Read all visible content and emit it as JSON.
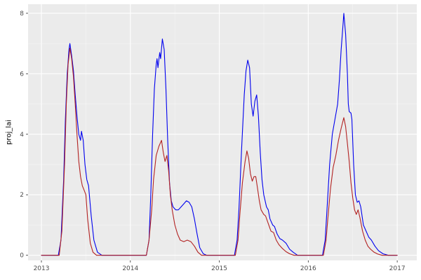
{
  "figure": {
    "background": "#FFFFFF"
  },
  "chart_data": {
    "type": "line",
    "title": "",
    "xlabel": "",
    "ylabel": "proj_lai",
    "xlim": [
      2012.85,
      2017.22
    ],
    "ylim": [
      -0.17,
      8.3
    ],
    "x_ticks": [
      2013,
      2014,
      2015,
      2016,
      2017
    ],
    "x_minor_ticks": [
      2013.5,
      2014.5,
      2015.5,
      2016.5
    ],
    "y_ticks": [
      0,
      2,
      4,
      6,
      8
    ],
    "y_minor_ticks": [
      1,
      3,
      5,
      7
    ],
    "grid": true,
    "legend": "none",
    "panel_background": "#EBEBEB",
    "grid_major_color": "#FFFFFF",
    "grid_minor_color": "#FFFFFF",
    "grid_minor_opacity": 0.55,
    "tick_color": "#333333",
    "tick_label_color": "#4D4D4D",
    "axis_title_color": "#000000",
    "series": [
      {
        "name": "blue-line",
        "color": "#0000EE",
        "points": [
          [
            2013.0,
            0
          ],
          [
            2013.19,
            0
          ],
          [
            2013.22,
            0.5
          ],
          [
            2013.25,
            2.5
          ],
          [
            2013.27,
            4.5
          ],
          [
            2013.29,
            6.0
          ],
          [
            2013.31,
            6.8
          ],
          [
            2013.32,
            7.0
          ],
          [
            2013.34,
            6.6
          ],
          [
            2013.36,
            6.1
          ],
          [
            2013.38,
            5.3
          ],
          [
            2013.4,
            4.6
          ],
          [
            2013.42,
            4.0
          ],
          [
            2013.44,
            3.8
          ],
          [
            2013.45,
            4.1
          ],
          [
            2013.47,
            3.8
          ],
          [
            2013.49,
            3.0
          ],
          [
            2013.51,
            2.5
          ],
          [
            2013.53,
            2.3
          ],
          [
            2013.56,
            1.3
          ],
          [
            2013.59,
            0.5
          ],
          [
            2013.63,
            0.1
          ],
          [
            2013.68,
            0
          ],
          [
            2014.18,
            0
          ],
          [
            2014.21,
            0.5
          ],
          [
            2014.23,
            2.0
          ],
          [
            2014.25,
            4.0
          ],
          [
            2014.27,
            5.5
          ],
          [
            2014.29,
            6.3
          ],
          [
            2014.3,
            6.5
          ],
          [
            2014.31,
            6.2
          ],
          [
            2014.33,
            6.7
          ],
          [
            2014.34,
            6.5
          ],
          [
            2014.36,
            7.15
          ],
          [
            2014.38,
            6.8
          ],
          [
            2014.4,
            5.5
          ],
          [
            2014.42,
            3.8
          ],
          [
            2014.44,
            2.4
          ],
          [
            2014.46,
            1.8
          ],
          [
            2014.48,
            1.6
          ],
          [
            2014.51,
            1.5
          ],
          [
            2014.54,
            1.5
          ],
          [
            2014.57,
            1.6
          ],
          [
            2014.6,
            1.7
          ],
          [
            2014.63,
            1.8
          ],
          [
            2014.66,
            1.75
          ],
          [
            2014.69,
            1.6
          ],
          [
            2014.72,
            1.2
          ],
          [
            2014.75,
            0.7
          ],
          [
            2014.78,
            0.25
          ],
          [
            2014.82,
            0.05
          ],
          [
            2014.86,
            0
          ],
          [
            2015.17,
            0
          ],
          [
            2015.2,
            0.5
          ],
          [
            2015.22,
            1.5
          ],
          [
            2015.25,
            3.5
          ],
          [
            2015.28,
            5.3
          ],
          [
            2015.3,
            6.1
          ],
          [
            2015.32,
            6.45
          ],
          [
            2015.34,
            6.2
          ],
          [
            2015.36,
            5.0
          ],
          [
            2015.38,
            4.6
          ],
          [
            2015.4,
            5.1
          ],
          [
            2015.42,
            5.3
          ],
          [
            2015.44,
            4.6
          ],
          [
            2015.46,
            3.4
          ],
          [
            2015.48,
            2.5
          ],
          [
            2015.5,
            2.0
          ],
          [
            2015.53,
            1.6
          ],
          [
            2015.55,
            1.5
          ],
          [
            2015.57,
            1.2
          ],
          [
            2015.6,
            1.0
          ],
          [
            2015.62,
            0.95
          ],
          [
            2015.65,
            0.7
          ],
          [
            2015.68,
            0.55
          ],
          [
            2015.71,
            0.5
          ],
          [
            2015.75,
            0.4
          ],
          [
            2015.79,
            0.2
          ],
          [
            2015.83,
            0.1
          ],
          [
            2015.88,
            0
          ],
          [
            2016.16,
            0
          ],
          [
            2016.19,
            0.5
          ],
          [
            2016.21,
            1.5
          ],
          [
            2016.24,
            3.0
          ],
          [
            2016.27,
            4.0
          ],
          [
            2016.3,
            4.5
          ],
          [
            2016.33,
            5.0
          ],
          [
            2016.35,
            5.8
          ],
          [
            2016.37,
            6.8
          ],
          [
            2016.39,
            7.6
          ],
          [
            2016.4,
            8.0
          ],
          [
            2016.42,
            7.3
          ],
          [
            2016.44,
            6.0
          ],
          [
            2016.45,
            5.0
          ],
          [
            2016.46,
            4.75
          ],
          [
            2016.48,
            4.7
          ],
          [
            2016.49,
            4.5
          ],
          [
            2016.51,
            3.0
          ],
          [
            2016.53,
            2.0
          ],
          [
            2016.55,
            1.75
          ],
          [
            2016.57,
            1.8
          ],
          [
            2016.59,
            1.6
          ],
          [
            2016.62,
            1.0
          ],
          [
            2016.65,
            0.8
          ],
          [
            2016.68,
            0.6
          ],
          [
            2016.71,
            0.5
          ],
          [
            2016.75,
            0.3
          ],
          [
            2016.79,
            0.15
          ],
          [
            2016.84,
            0.05
          ],
          [
            2016.9,
            0
          ],
          [
            2017.0,
            0
          ]
        ]
      },
      {
        "name": "red-line",
        "color": "#B22222",
        "points": [
          [
            2013.0,
            0
          ],
          [
            2013.2,
            0
          ],
          [
            2013.23,
            0.8
          ],
          [
            2013.26,
            3.0
          ],
          [
            2013.28,
            5.0
          ],
          [
            2013.3,
            6.3
          ],
          [
            2013.32,
            6.85
          ],
          [
            2013.34,
            6.5
          ],
          [
            2013.36,
            5.9
          ],
          [
            2013.38,
            5.0
          ],
          [
            2013.4,
            4.0
          ],
          [
            2013.42,
            3.1
          ],
          [
            2013.44,
            2.6
          ],
          [
            2013.46,
            2.3
          ],
          [
            2013.48,
            2.15
          ],
          [
            2013.5,
            2.0
          ],
          [
            2013.52,
            1.2
          ],
          [
            2013.55,
            0.4
          ],
          [
            2013.58,
            0.1
          ],
          [
            2013.62,
            0
          ],
          [
            2014.18,
            0
          ],
          [
            2014.21,
            0.5
          ],
          [
            2014.24,
            1.5
          ],
          [
            2014.26,
            2.5
          ],
          [
            2014.29,
            3.3
          ],
          [
            2014.32,
            3.6
          ],
          [
            2014.35,
            3.8
          ],
          [
            2014.37,
            3.4
          ],
          [
            2014.39,
            3.1
          ],
          [
            2014.41,
            3.3
          ],
          [
            2014.43,
            2.8
          ],
          [
            2014.45,
            2.0
          ],
          [
            2014.47,
            1.5
          ],
          [
            2014.5,
            1.0
          ],
          [
            2014.53,
            0.7
          ],
          [
            2014.56,
            0.5
          ],
          [
            2014.6,
            0.45
          ],
          [
            2014.64,
            0.5
          ],
          [
            2014.68,
            0.45
          ],
          [
            2014.72,
            0.3
          ],
          [
            2014.76,
            0.1
          ],
          [
            2014.8,
            0
          ],
          [
            2015.18,
            0
          ],
          [
            2015.21,
            0.5
          ],
          [
            2015.23,
            1.3
          ],
          [
            2015.26,
            2.4
          ],
          [
            2015.29,
            3.1
          ],
          [
            2015.31,
            3.45
          ],
          [
            2015.33,
            3.2
          ],
          [
            2015.35,
            2.7
          ],
          [
            2015.37,
            2.45
          ],
          [
            2015.39,
            2.6
          ],
          [
            2015.41,
            2.6
          ],
          [
            2015.43,
            2.2
          ],
          [
            2015.45,
            1.8
          ],
          [
            2015.47,
            1.5
          ],
          [
            2015.5,
            1.35
          ],
          [
            2015.52,
            1.3
          ],
          [
            2015.55,
            1.05
          ],
          [
            2015.58,
            0.8
          ],
          [
            2015.61,
            0.75
          ],
          [
            2015.64,
            0.5
          ],
          [
            2015.67,
            0.35
          ],
          [
            2015.71,
            0.22
          ],
          [
            2015.75,
            0.12
          ],
          [
            2015.79,
            0.05
          ],
          [
            2015.84,
            0
          ],
          [
            2016.17,
            0
          ],
          [
            2016.2,
            0.5
          ],
          [
            2016.22,
            1.2
          ],
          [
            2016.25,
            2.2
          ],
          [
            2016.28,
            2.9
          ],
          [
            2016.31,
            3.3
          ],
          [
            2016.34,
            3.8
          ],
          [
            2016.37,
            4.2
          ],
          [
            2016.4,
            4.55
          ],
          [
            2016.42,
            4.25
          ],
          [
            2016.44,
            3.7
          ],
          [
            2016.46,
            3.1
          ],
          [
            2016.48,
            2.4
          ],
          [
            2016.5,
            1.9
          ],
          [
            2016.52,
            1.5
          ],
          [
            2016.54,
            1.35
          ],
          [
            2016.56,
            1.5
          ],
          [
            2016.58,
            1.25
          ],
          [
            2016.61,
            0.8
          ],
          [
            2016.64,
            0.5
          ],
          [
            2016.67,
            0.3
          ],
          [
            2016.7,
            0.2
          ],
          [
            2016.74,
            0.1
          ],
          [
            2016.78,
            0.04
          ],
          [
            2016.83,
            0
          ],
          [
            2017.0,
            0
          ]
        ]
      }
    ]
  }
}
